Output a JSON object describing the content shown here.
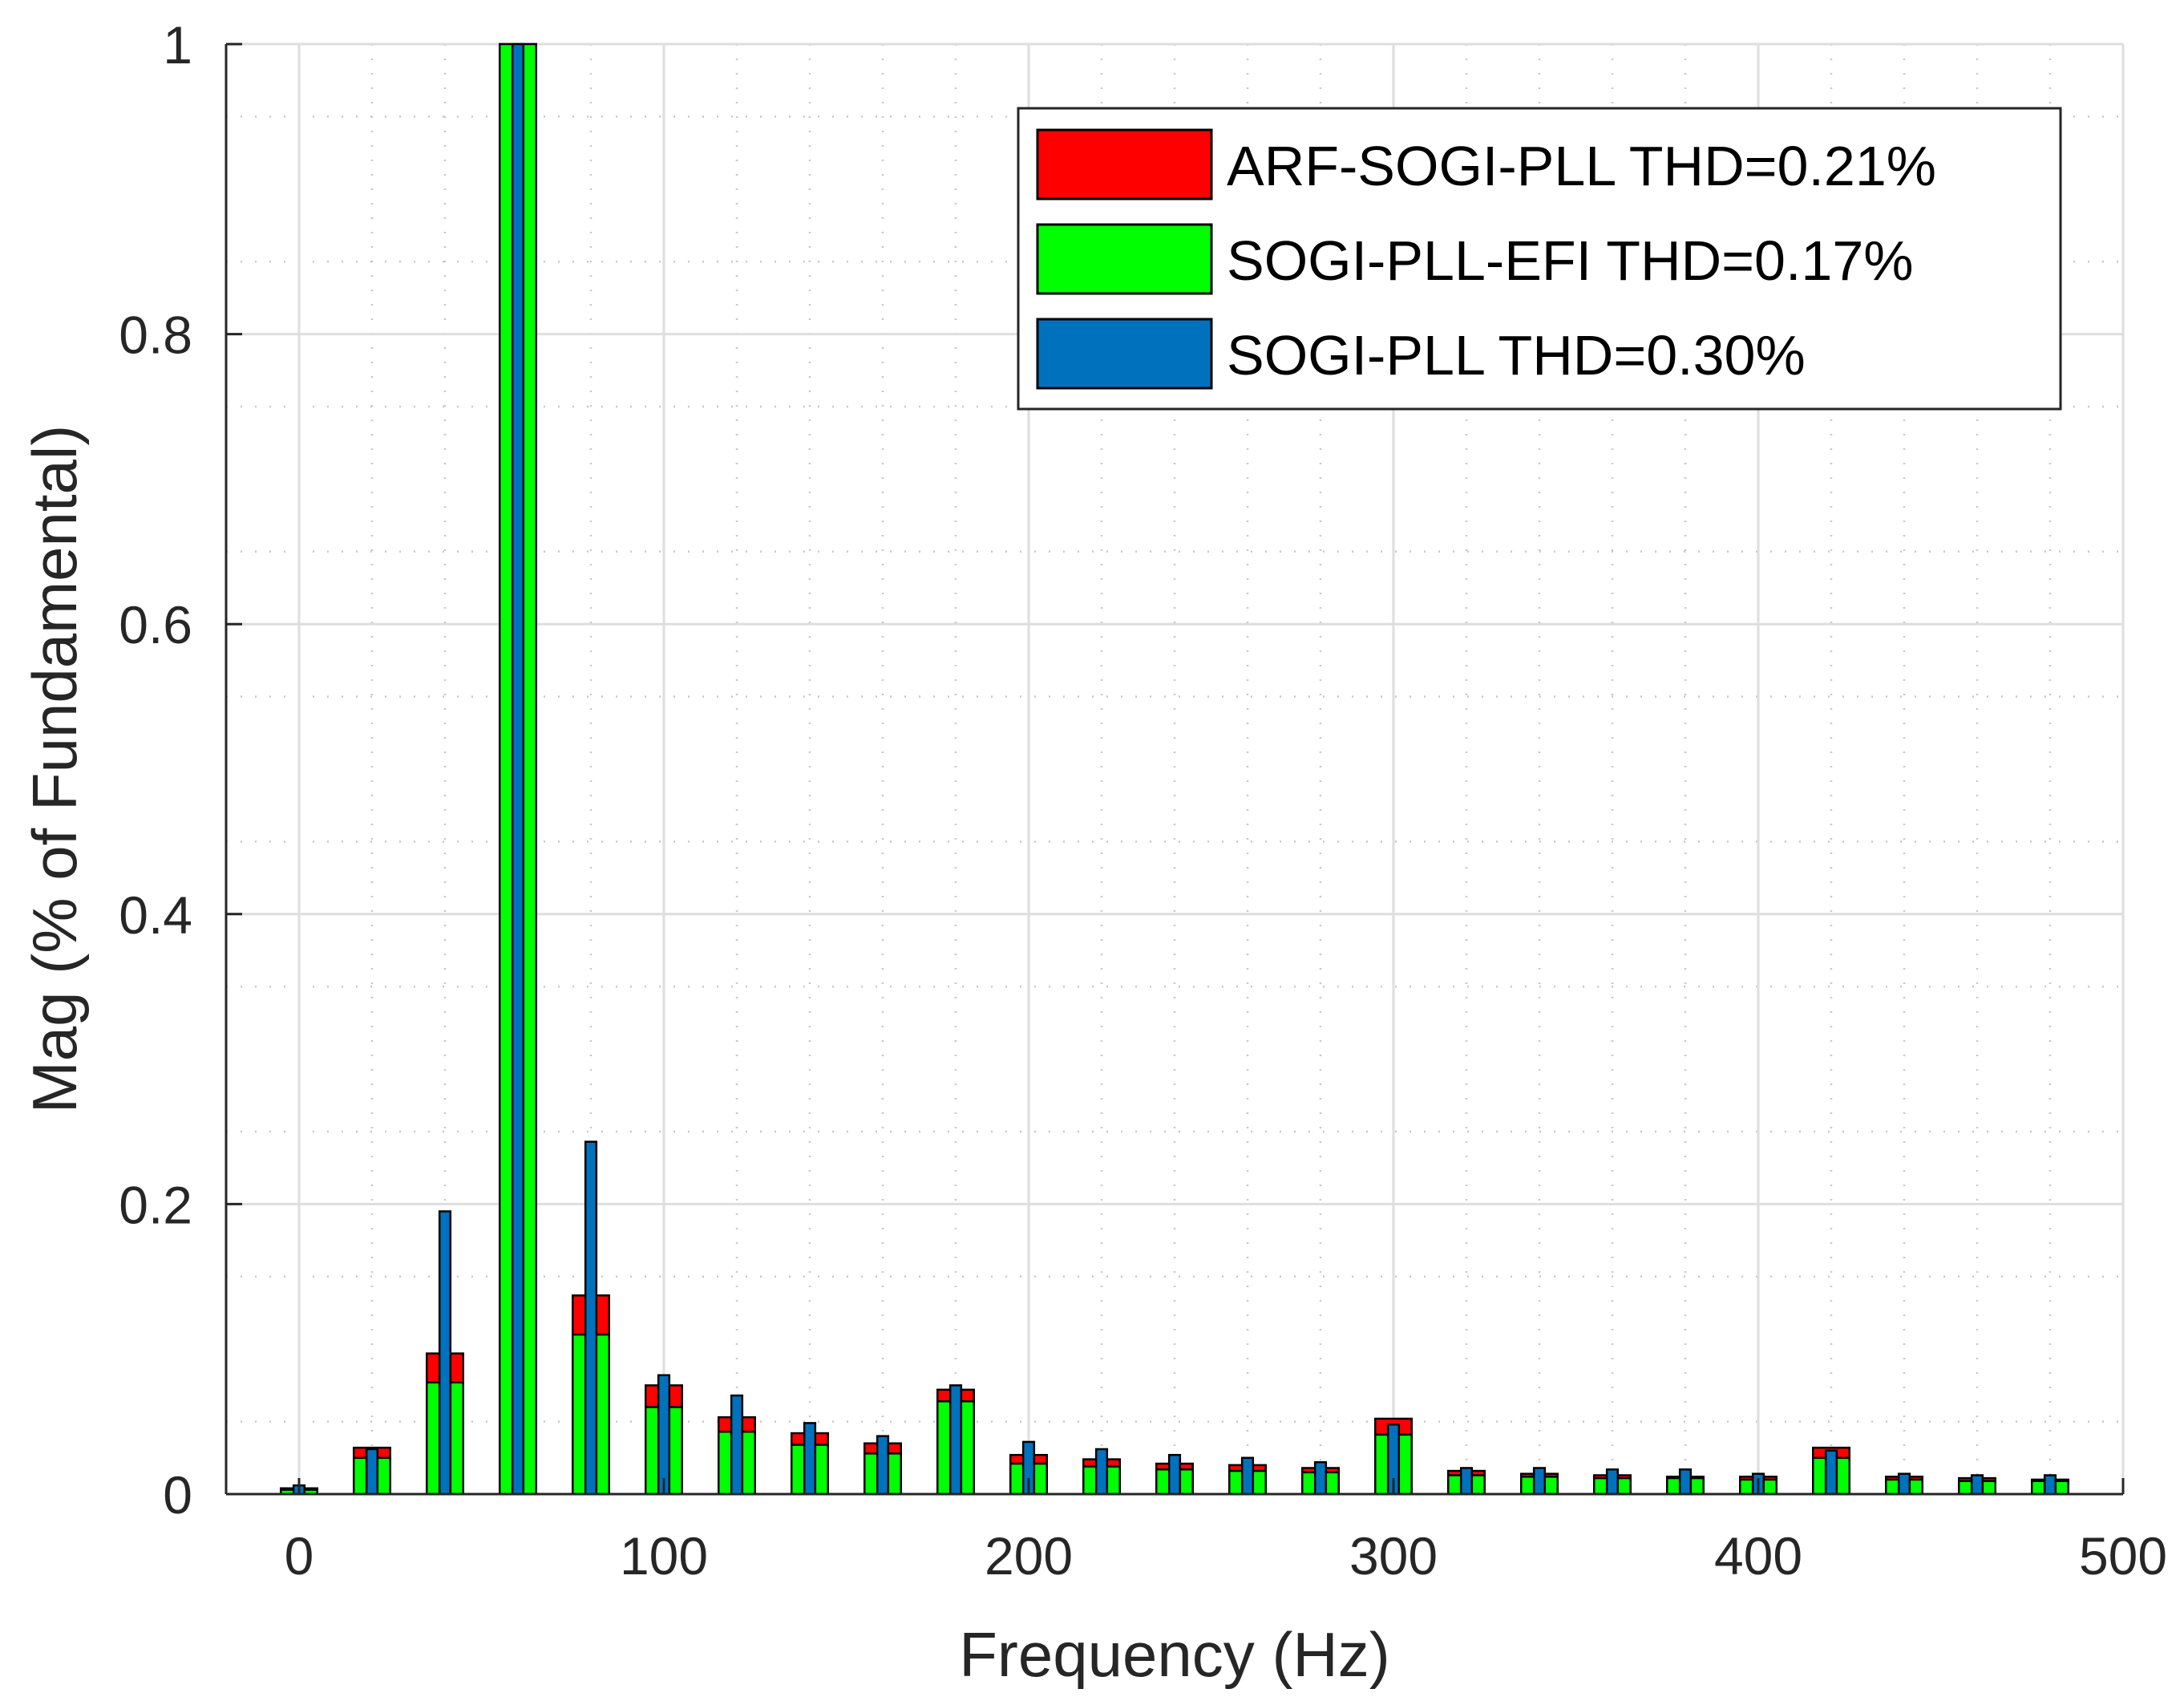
{
  "chart_data": {
    "type": "bar",
    "title": "",
    "xlabel": "Frequency (Hz)",
    "ylabel": "Mag (% of Fundamental)",
    "xlim": [
      -20,
      500
    ],
    "ylim": [
      0,
      1
    ],
    "xticks": [
      0,
      100,
      200,
      300,
      400,
      500
    ],
    "yticks": [
      0,
      0.2,
      0.4,
      0.6,
      0.8,
      1
    ],
    "xtick_labels": [
      "0",
      "100",
      "200",
      "300",
      "400",
      "500"
    ],
    "ytick_labels": [
      "0",
      "0.2",
      "0.4",
      "0.6",
      "0.8",
      "1"
    ],
    "grid": true,
    "minor_grid": true,
    "legend_position": "top-right",
    "x": [
      0,
      20,
      40,
      60,
      80,
      100,
      120,
      140,
      160,
      180,
      200,
      220,
      240,
      260,
      280,
      300,
      320,
      340,
      360,
      380,
      400,
      420,
      440,
      460,
      480
    ],
    "series": [
      {
        "name": "ARF-SOGI-PLL THD=0.21%",
        "color": "#ff0000",
        "width": 10,
        "values": [
          0.004,
          0.032,
          0.097,
          1.0,
          0.137,
          0.075,
          0.053,
          0.042,
          0.035,
          0.072,
          0.027,
          0.024,
          0.021,
          0.02,
          0.018,
          0.052,
          0.016,
          0.014,
          0.013,
          0.012,
          0.012,
          0.032,
          0.012,
          0.011,
          0.01
        ]
      },
      {
        "name": "SOGI-PLL-EFI THD=0.17%",
        "color": "#00ff00",
        "width": 10,
        "values": [
          0.003,
          0.025,
          0.077,
          1.0,
          0.11,
          0.06,
          0.043,
          0.034,
          0.028,
          0.064,
          0.021,
          0.019,
          0.017,
          0.016,
          0.015,
          0.041,
          0.013,
          0.012,
          0.011,
          0.011,
          0.01,
          0.025,
          0.01,
          0.009,
          0.009
        ]
      },
      {
        "name": "SOGI-PLL THD=0.30%",
        "color": "#0072bd",
        "width": 3,
        "values": [
          0.006,
          0.031,
          0.195,
          1.0,
          0.243,
          0.082,
          0.068,
          0.049,
          0.04,
          0.075,
          0.036,
          0.031,
          0.027,
          0.025,
          0.022,
          0.048,
          0.018,
          0.018,
          0.017,
          0.017,
          0.014,
          0.03,
          0.014,
          0.013,
          0.013
        ]
      }
    ]
  }
}
